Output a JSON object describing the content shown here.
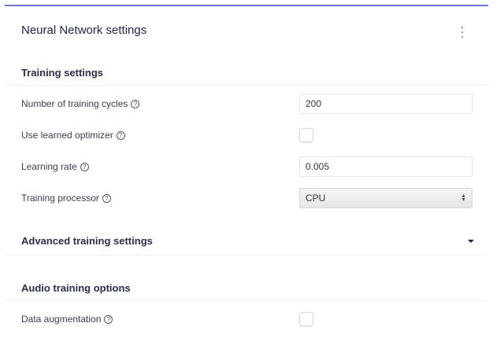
{
  "header": {
    "title": "Neural Network settings",
    "menu_icon": "kebab-vertical-icon"
  },
  "training": {
    "heading": "Training settings",
    "cycles": {
      "label": "Number of training cycles",
      "value": "200"
    },
    "optimizer": {
      "label": "Use learned optimizer",
      "checked": false
    },
    "lr": {
      "label": "Learning rate",
      "value": "0.005"
    },
    "processor": {
      "label": "Training processor",
      "value": "CPU"
    }
  },
  "advanced": {
    "heading": "Advanced training settings",
    "expanded": false
  },
  "audio": {
    "heading": "Audio training options",
    "augmentation": {
      "label": "Data augmentation",
      "checked": false
    }
  },
  "help_glyph": "?",
  "colors": {
    "accent": "#6c74d0",
    "text": "#2b2d4a"
  }
}
